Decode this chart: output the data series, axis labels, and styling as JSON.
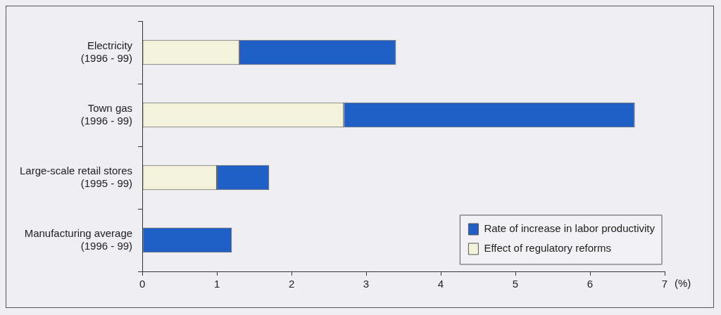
{
  "chart_data": {
    "type": "bar",
    "orientation": "horizontal",
    "stacked": true,
    "categories": [
      "Electricity\n(1996 - 99)",
      "Town gas\n(1996 - 99)",
      "Large-scale retail stores\n(1995 - 99)",
      "Manufacturing average\n(1996 - 99)"
    ],
    "series": [
      {
        "name": "Effect of regulatory reforms",
        "color": "#f3f3dc",
        "values": [
          1.3,
          2.7,
          1.0,
          0
        ]
      },
      {
        "name": "Rate of increase in labor productivity",
        "color": "#1f5fc6",
        "values": [
          2.1,
          3.9,
          0.7,
          1.2
        ]
      }
    ],
    "xlim": [
      0,
      7
    ],
    "xticks": [
      0,
      1,
      2,
      3,
      4,
      5,
      6,
      7
    ],
    "xlabel": "(%)",
    "grid": false,
    "legend": "bottom right"
  }
}
